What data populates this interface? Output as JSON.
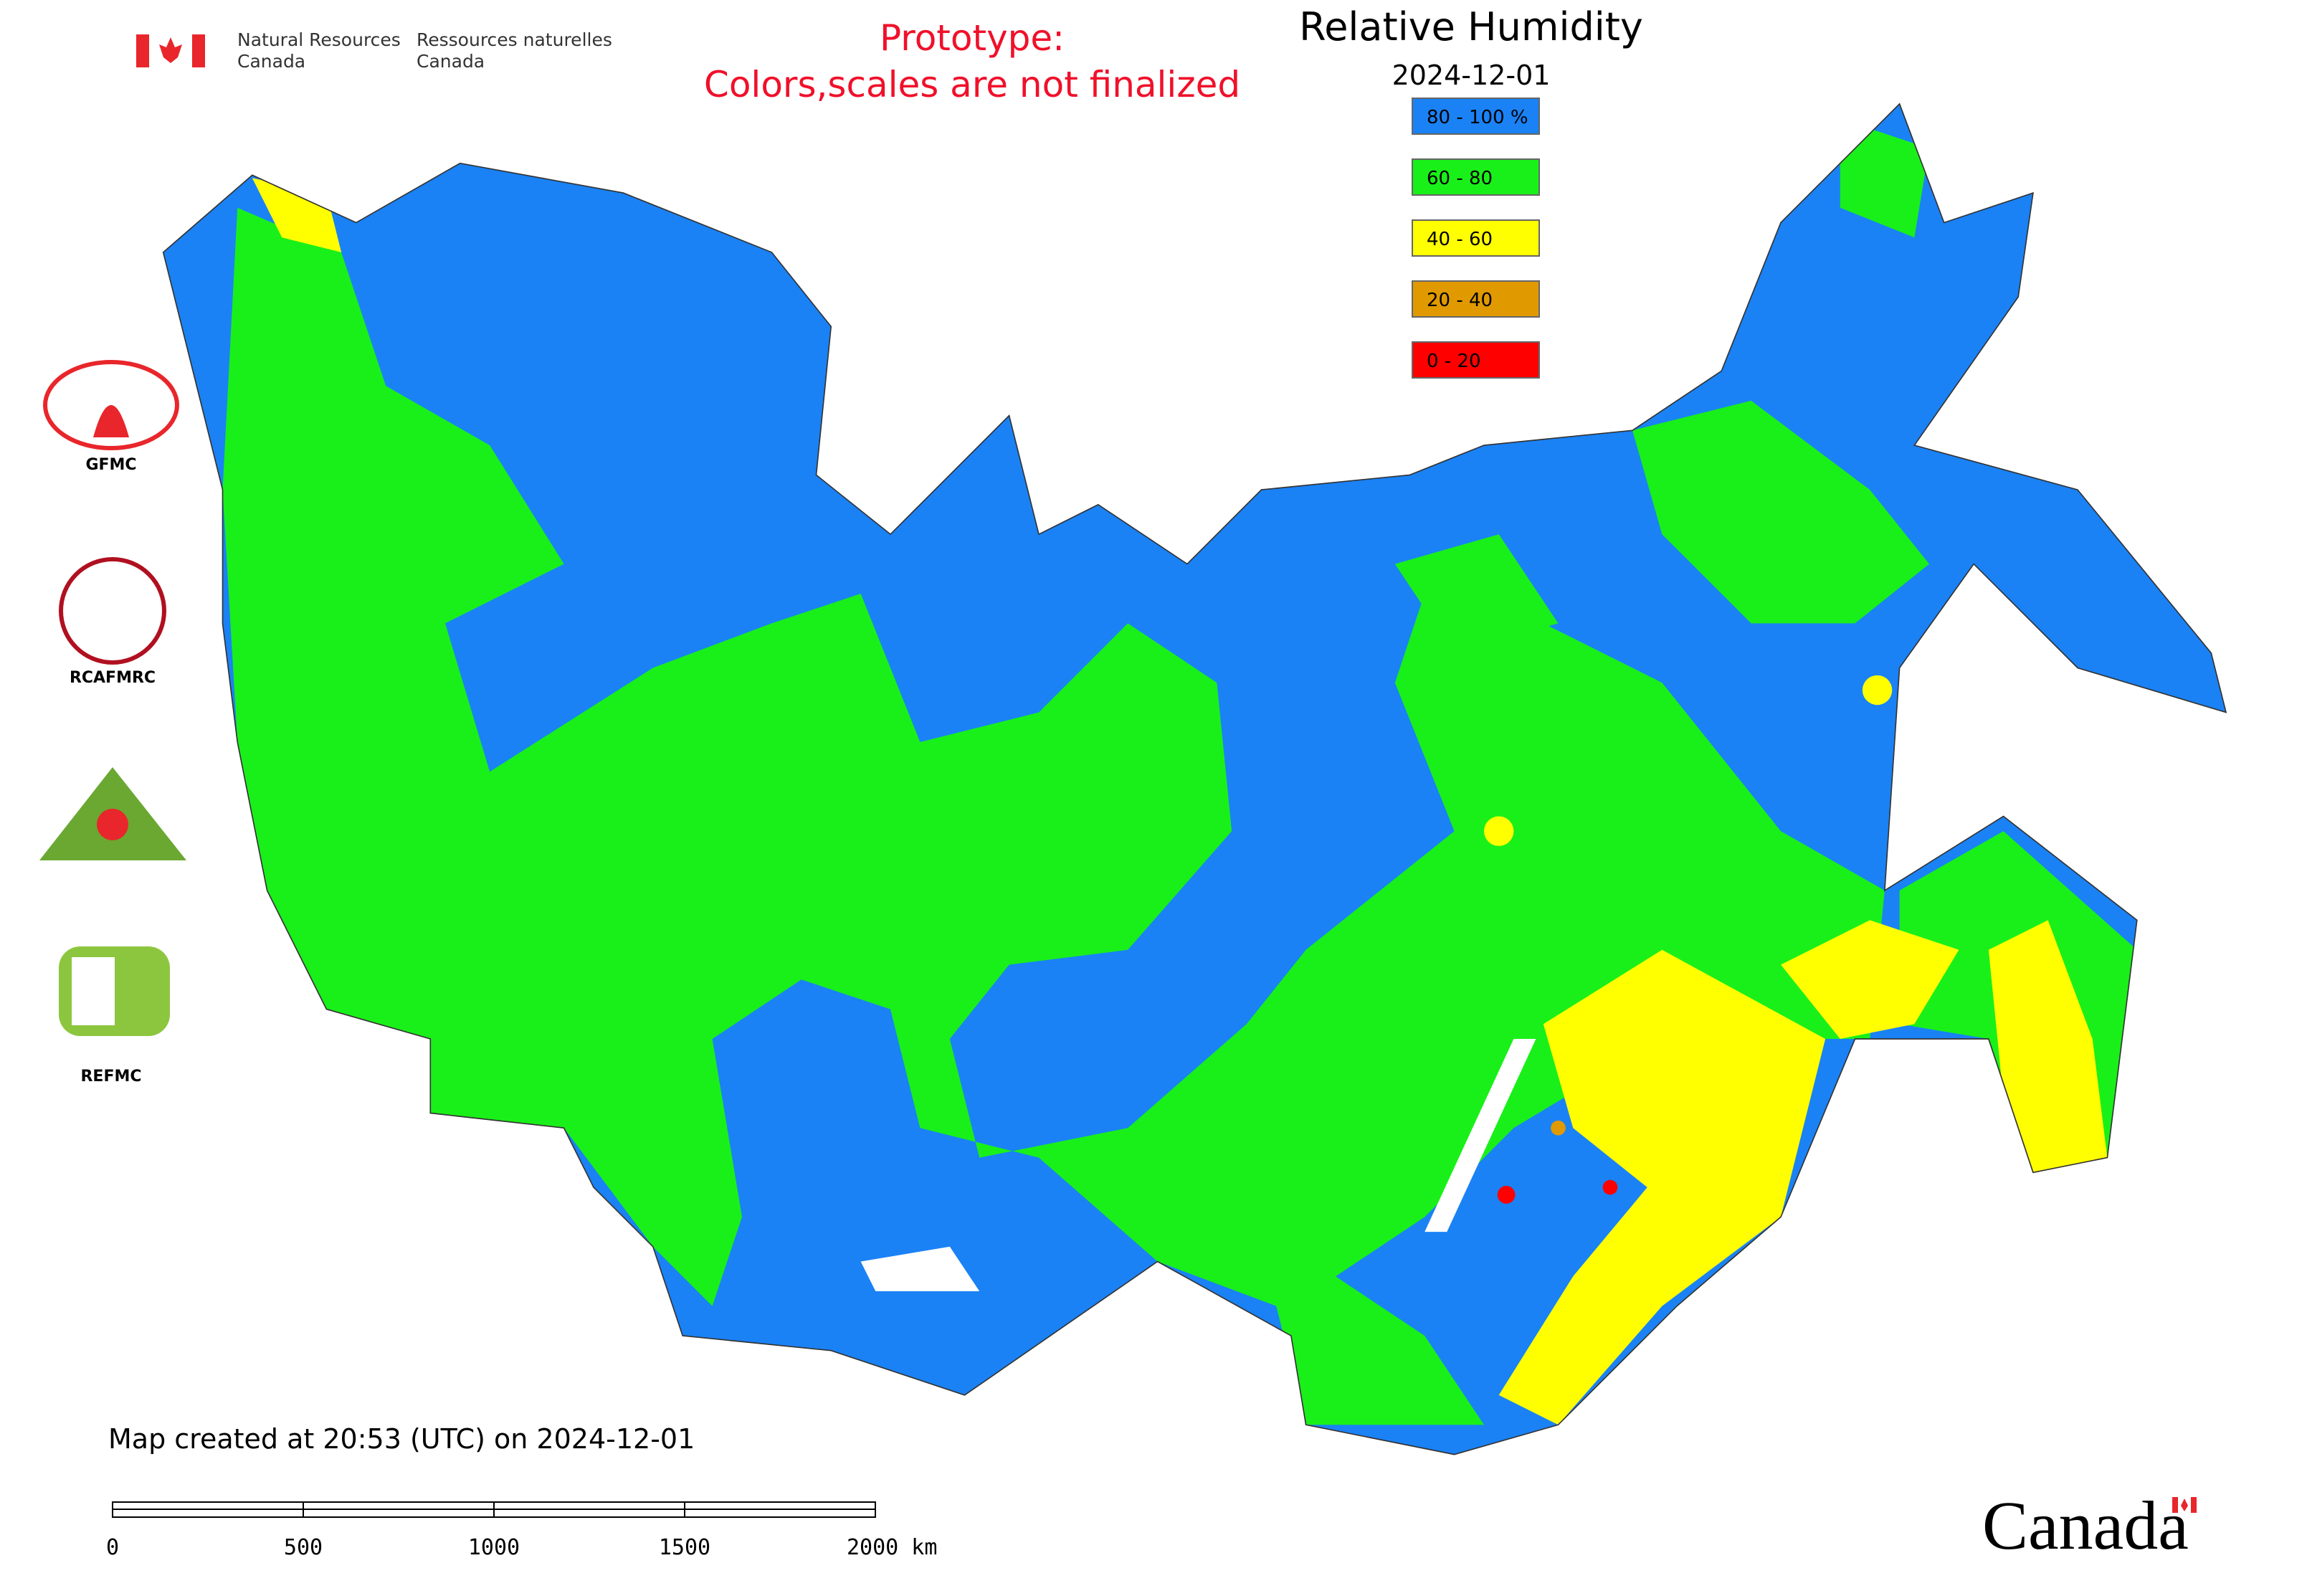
{
  "header": {
    "agency_en": [
      "Natural Resources",
      "Canada"
    ],
    "agency_fr": [
      "Ressources naturelles",
      "Canada"
    ]
  },
  "prototype": [
    "Prototype:",
    "Colors,scales are not finalized"
  ],
  "title": "Relative Humidity",
  "date": "2024-12-01",
  "legend": [
    {
      "label": "80 - 100 %",
      "color": "#1a82f5"
    },
    {
      "label": "60 - 80",
      "color": "#19f019"
    },
    {
      "label": "40 - 60",
      "color": "#ffff00"
    },
    {
      "label": "20 - 40",
      "color": "#e09a00"
    },
    {
      "label": "0 - 20",
      "color": "#ff0000"
    }
  ],
  "logos": [
    "GFMC",
    "RCAFMRC",
    "REFMC"
  ],
  "footer": "Map created at 20:53 (UTC) on 2024-12-01",
  "scale_bar": [
    "0",
    "500",
    "1000",
    "1500",
    "2000 km"
  ],
  "wordmark": "Canada"
}
